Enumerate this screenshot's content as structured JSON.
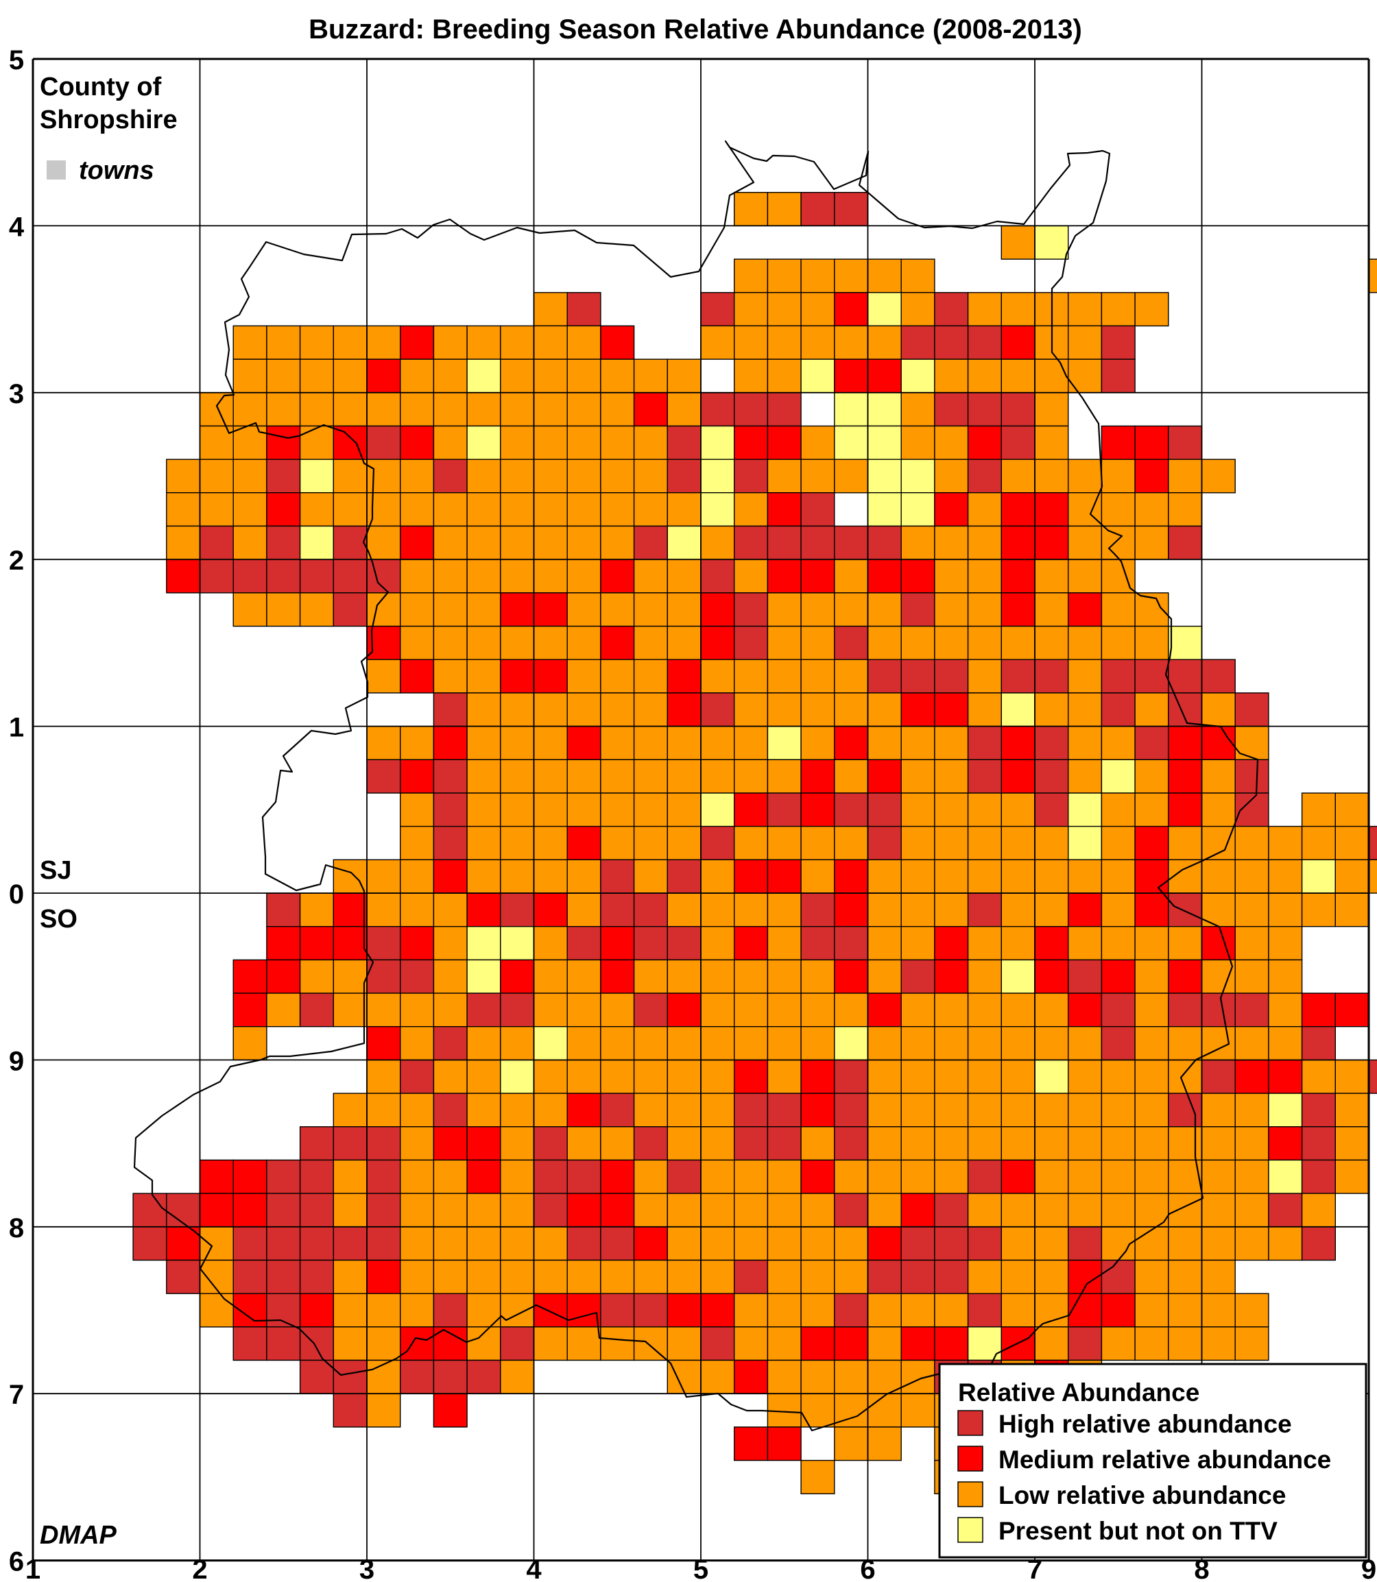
{
  "title": "Buzzard: Breeding Season Relative Abundance (2008-2013)",
  "map_label": {
    "line1": "County of",
    "line2": "Shropshire",
    "towns": "towns",
    "towns_color": "#c8c8c8"
  },
  "grid_labels": {
    "north": "SJ",
    "south": "SO"
  },
  "credit": "DMAP",
  "x_ticks": [
    "1",
    "2",
    "3",
    "4",
    "5",
    "6",
    "7",
    "8",
    "9"
  ],
  "y_ticks": [
    "6",
    "7",
    "8",
    "9",
    "0",
    "1",
    "2",
    "3",
    "4",
    "5"
  ],
  "legend": {
    "title": "Relative Abundance",
    "items": [
      {
        "key": "H",
        "label": "High relative abundance",
        "color": "#d62e2e"
      },
      {
        "key": "M",
        "label": "Medium relative abundance",
        "color": "#ff0000"
      },
      {
        "key": "L",
        "label": "Low relative abundance",
        "color": "#ff9900"
      },
      {
        "key": "P",
        "label": "Present but not on TTV",
        "color": "#ffff80"
      }
    ]
  },
  "tetrad_grid": {
    "col_start": 1.6,
    "row_start": 4.2,
    "cell_km": 0.2,
    "rows": [
      "..................LLHH..................",
      "..........................LP............",
      "..................LLLLLL.............LL.",
      "............LH...HLLLMPLHLLLLLL.........",
      "...LLLLLMLLLLLM..LLLLLLHHHMLLH..........",
      "...LLLLMLLPLLLLLL.LLPMMPLLLLLH..........",
      "..LLLLLLLLLLLLLMLHHH.PPLHHHL............",
      "..LLMLMHMLPLLLLLHPMMLPPLLMHL.MMH........",
      ".LLLHPLLLHLLLLLLHPHLLLPPLHLLLLMLL........",
      ".LLLMLLLLLLLLLLLLPLMH.PPMLMMLLLL.........",
      ".LHLHPHLMLLLLLLHPLHHHHHLLLMMLLLH.........",
      ".MHHHHHHLLLLLLMLLHLMMLMMLLMLLL...........",
      "...LLLHLLLLMMLLLLMHLLLLHLLMLMLL..........",
      ".......MLLLLLLMLLMHLLHLLLLLLLLLP.........",
      ".......LMLLMMLLLMLLLLLHHHLHHLHHHH........",
      ".........HLLLLLLMHLLLLLMMLPLLHLHLH.......",
      ".......LLMLLLMLLLLLPLMLLLHMHLLHMML.......",
      ".......HMHLLLLLLLLLLMLMLLHMHLPLMLH.......",
      "........LHLLLLLLLPMHMHHLLLLHPLLMLH.LL....",
      "........LHLLLMLLLHLLLLHLLLLLPLMLLLLLLH...",
      "......LLLMLLLLHLHLMMLMLLLLLLLLMLLLLPLL...",
      "....HLMLLLMHMLHHLLLLHMLLLHLLMLMHLLLLL....",
      "....MMMHMLPPLHMHHLMLHHLLMLLMLLLLMLL......",
      "...MMLLHHLPMLLMLLLLLLMLHMLPMHMLMLLL......",
      "...MLHLLLLHHLLLHMLLLLLMLLLLLMHLHHHLMM....",
      "...L...MLHLLPLLLLLLLLPLLLLLLLHLLLLLH.....",
      ".......LHLLPLLLLLLMLMHLLLLLPLLLLHMMLLH...",
      "......LLLHLLLMHLLLHHMHLLLLLLLLLHLLPHL...",
      ".....HHHLMMLHLLHLLHHLHLLLLLLLLLLLLMHL....",
      "..MMHHLHLLMLHHMLHLLLMLLLLHMLLLLLLLPHL....",
      "HHMMHHLHLLLLHMMLLLLLLHLMHLLLLLLLLLHL.....",
      "HMLHHHHHLLLLLHHMLLLLLLMHHHLLHLLLLLLH.....",
      ".HLHHHLMLLLLLLLLLLHLLLHHHLLLMHLLL........",
      "..LMHMLLLHLLMMHHMMLLLHLLLHLLMMLLLL.......",
      "...HHHLLMMLHLLLLLHLLMMLMMPMLHLLLLL.......",
      ".....HHLHHHL....LLMLLLLLHHLML............",
      "......HL.M.........LLLLLLLLM............",
      "..................MM.LL.LL..............",
      "....................L...LL.............."
    ]
  }
}
